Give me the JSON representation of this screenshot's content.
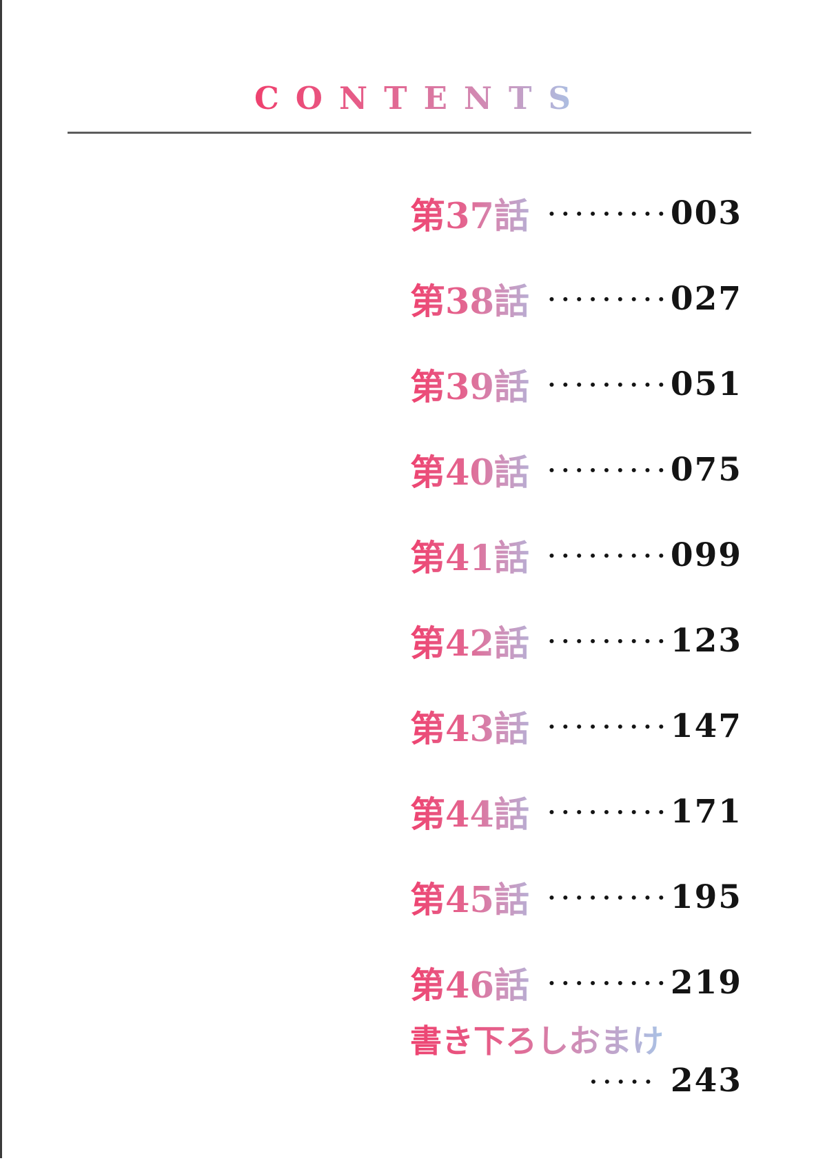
{
  "title": "CONTENTS",
  "colors": {
    "background": "#ffffff",
    "gradient_start": "#ee4370",
    "gradient_mid1": "#e4638e",
    "gradient_mid2": "#cf8fb8",
    "gradient_end": "#a9c3e6",
    "rule": "#5c5c5c",
    "ink": "#141414",
    "edge_line": "#3a3a3a"
  },
  "toc": {
    "leader_dots": "••••••••••••••",
    "entries": [
      {
        "label": "第37話",
        "page": "003"
      },
      {
        "label": "第38話",
        "page": "027"
      },
      {
        "label": "第39話",
        "page": "051"
      },
      {
        "label": "第40話",
        "page": "075"
      },
      {
        "label": "第41話",
        "page": "099"
      },
      {
        "label": "第42話",
        "page": "123"
      },
      {
        "label": "第43話",
        "page": "147"
      },
      {
        "label": "第44話",
        "page": "171"
      },
      {
        "label": "第45話",
        "page": "195"
      },
      {
        "label": "第46話",
        "page": "219"
      }
    ],
    "bonus": {
      "label": "書き下ろしおまけ",
      "leader_dots": "•••••",
      "page": "243"
    }
  }
}
